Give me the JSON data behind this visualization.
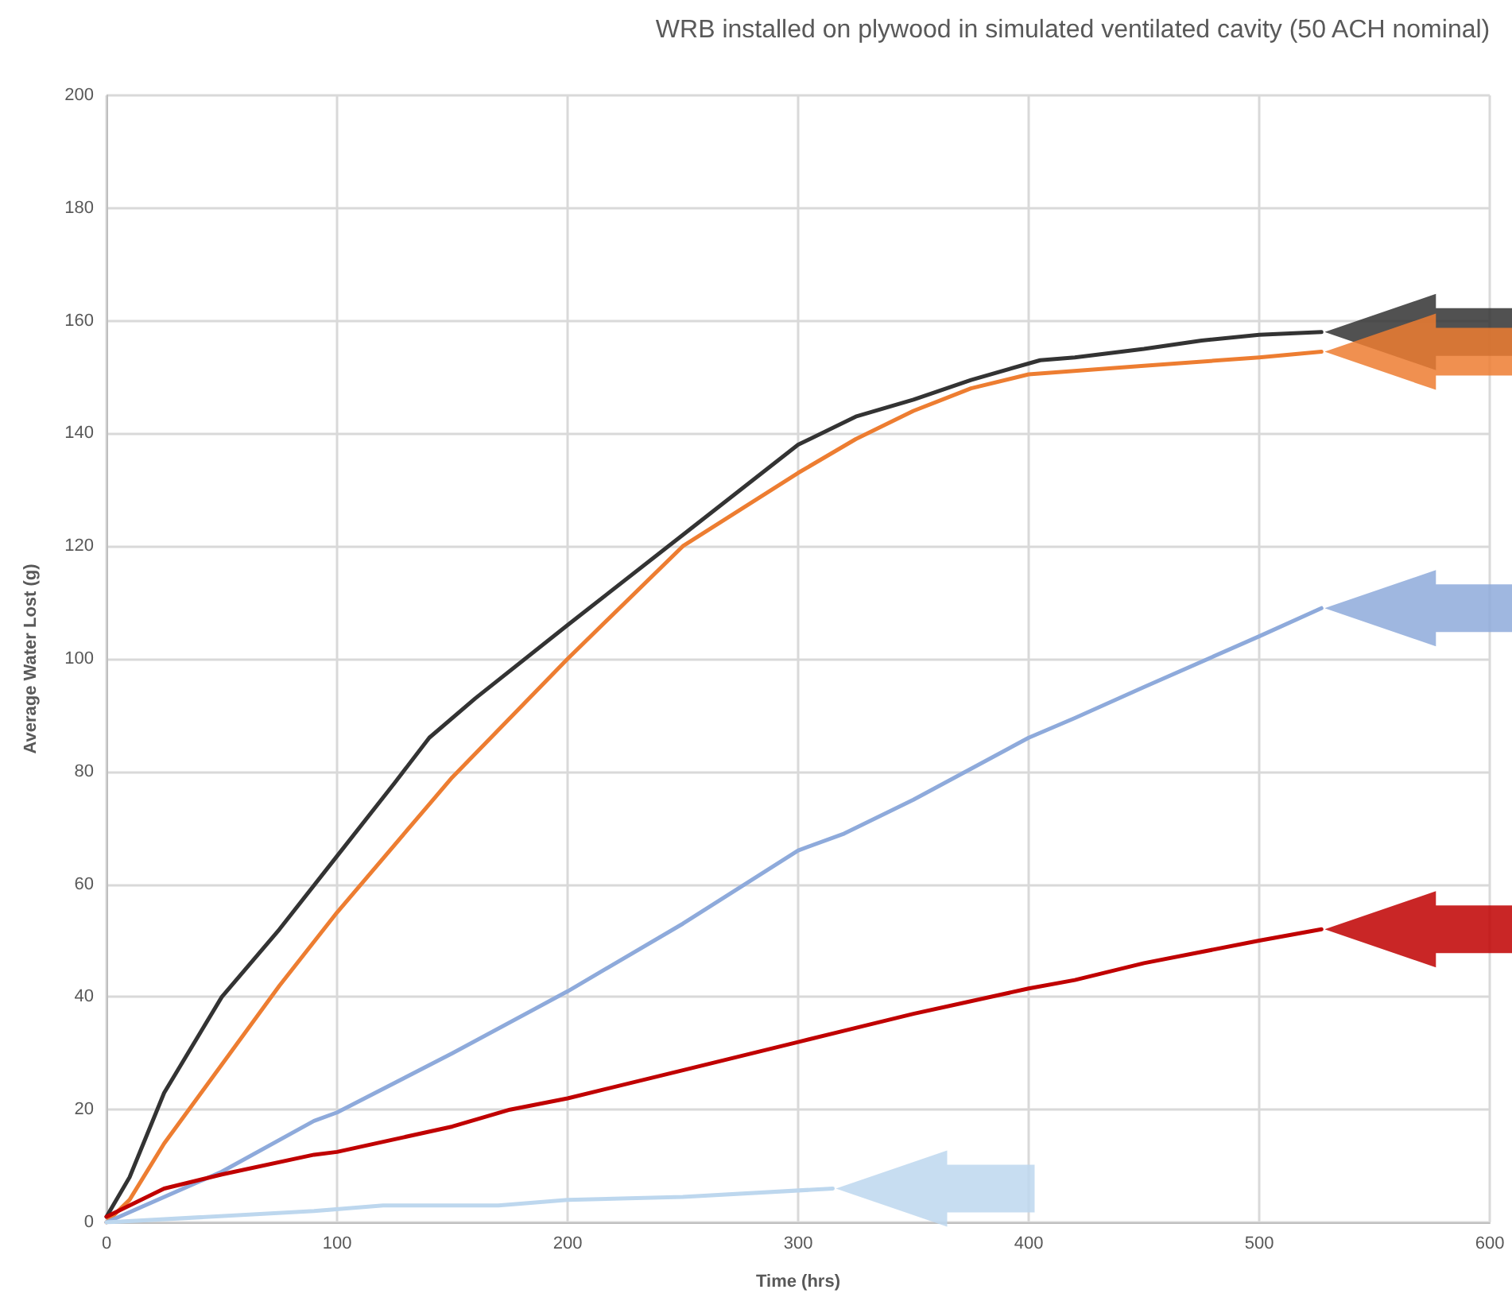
{
  "chart_data": {
    "type": "line",
    "title": "WRB installed on plywood in simulated ventilated cavity (50 ACH nominal)",
    "xlabel": "Time (hrs)",
    "ylabel": "Average Water Lost (g)",
    "xlim": [
      0,
      600
    ],
    "xticks": [
      0,
      100,
      200,
      300,
      400,
      500,
      600
    ],
    "ylim": [
      0,
      200
    ],
    "yticks": [
      0,
      20,
      40,
      60,
      80,
      100,
      120,
      140,
      160,
      180,
      200
    ],
    "grid": true,
    "series": [
      {
        "color": "#333333",
        "x": [
          0,
          10,
          25,
          50,
          75,
          100,
          125,
          140,
          160,
          200,
          250,
          300,
          325,
          350,
          375,
          405,
          420,
          450,
          475,
          500,
          527
        ],
        "values": [
          1,
          8,
          23,
          40,
          52,
          65,
          78,
          86,
          93,
          106,
          122,
          138,
          143,
          146,
          149.5,
          153,
          153.5,
          155,
          156.5,
          157.5,
          158
        ]
      },
      {
        "color": "#ed7d31",
        "x": [
          0,
          10,
          25,
          50,
          75,
          100,
          150,
          200,
          250,
          300,
          325,
          350,
          375,
          400,
          450,
          500,
          527
        ],
        "values": [
          0,
          4,
          14,
          28,
          42,
          55,
          79,
          100,
          120,
          133,
          139,
          144,
          148,
          150.5,
          152,
          153.5,
          154.5
        ]
      },
      {
        "color": "#8eaadb",
        "x": [
          0,
          50,
          90,
          100,
          150,
          200,
          250,
          300,
          320,
          350,
          400,
          420,
          450,
          500,
          527
        ],
        "values": [
          0,
          9,
          18,
          19.5,
          30,
          41,
          53,
          66,
          69,
          75,
          86,
          89.5,
          95,
          104,
          109
        ]
      },
      {
        "color": "#c00000",
        "x": [
          0,
          10,
          25,
          50,
          90,
          100,
          150,
          175,
          200,
          250,
          300,
          320,
          350,
          400,
          420,
          450,
          500,
          527
        ],
        "values": [
          1,
          3,
          6,
          8.5,
          12,
          12.5,
          17,
          20,
          22,
          27,
          32,
          34,
          37,
          41.5,
          43,
          46,
          50,
          52
        ]
      },
      {
        "color": "#bdd7ee",
        "x": [
          0,
          90,
          120,
          170,
          200,
          250,
          315
        ],
        "values": [
          0,
          2,
          3,
          3,
          4,
          4.5,
          6
        ]
      }
    ]
  }
}
